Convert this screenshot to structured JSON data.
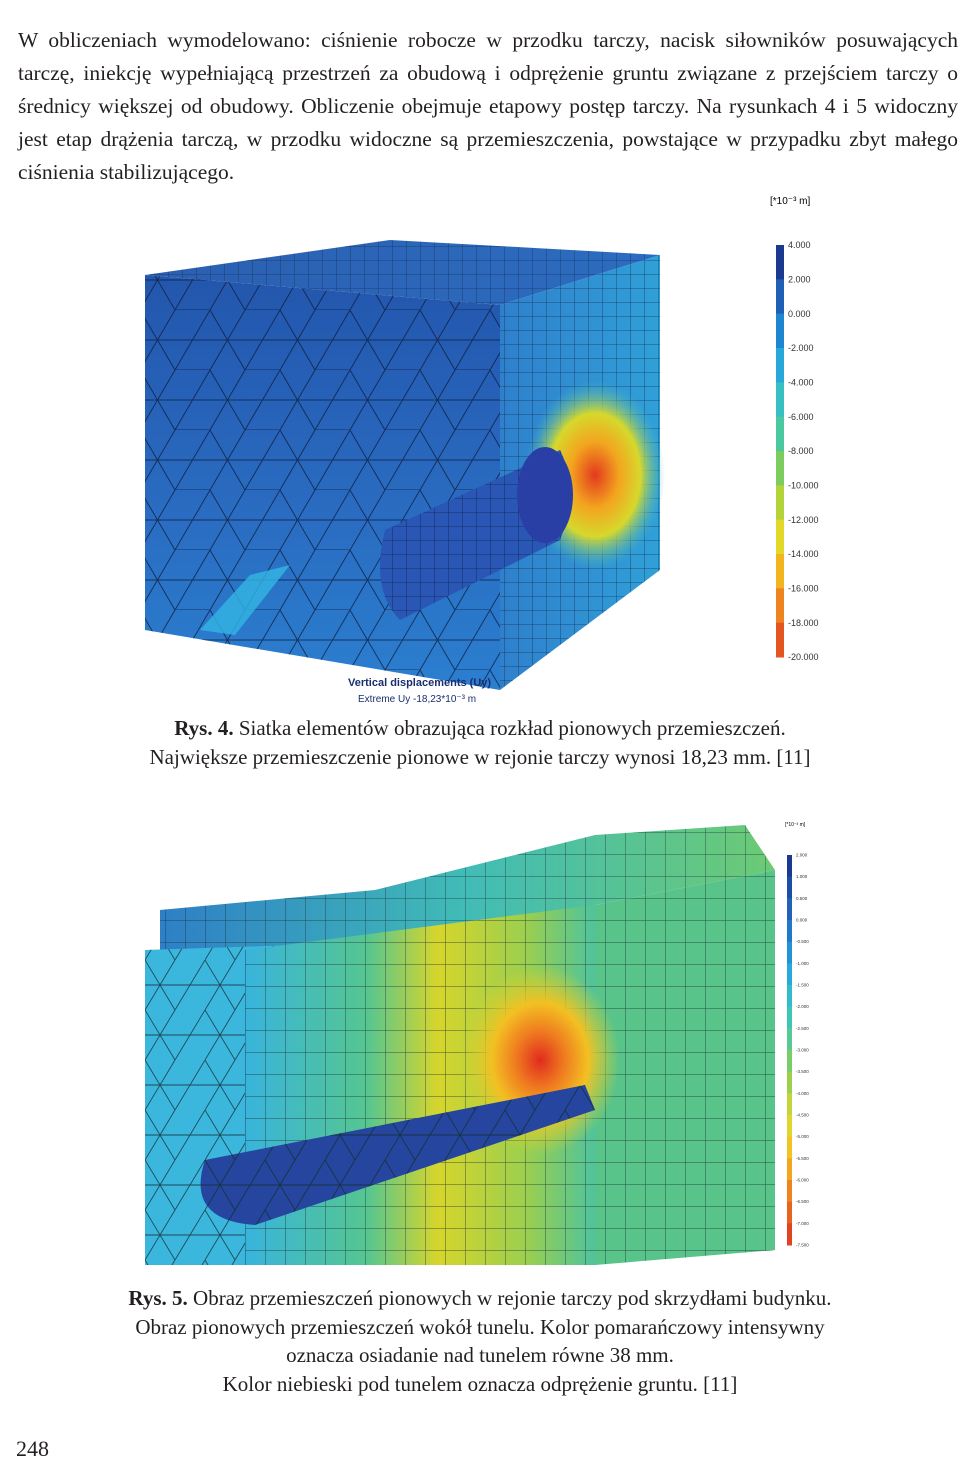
{
  "paragraph": "W obliczeniach wymodelowano: ciśnienie robocze w przodku tarczy, nacisk siłowników posuwających tarczę, iniekcję wypełniającą przestrzeń za obudową i odprężenie gruntu związane z przejściem tarczy o średnicy większej od obudowy. Obliczenie obejmuje etapowy postęp tarczy. Na rysunkach 4 i 5 widoczny jest etap drążenia tarczą, w przodku widoczne są przemieszczenia, powstające w przypadku zbyt małego ciśnienia stabilizującego.",
  "figure4": {
    "unit_label": "[*10⁻³ m]",
    "scale_values": [
      "4.000",
      "2.000",
      "0.000",
      "-2.000",
      "-4.000",
      "-6.000",
      "-8.000",
      "-10.000",
      "-12.000",
      "-14.000",
      "-16.000",
      "-18.000",
      "-20.000"
    ],
    "scale_colors": [
      "#1b3a8f",
      "#1f5fb5",
      "#1e86d0",
      "#26a8d8",
      "#36c0c4",
      "#4cc8a0",
      "#7ccd5e",
      "#b2d33a",
      "#e2d828",
      "#f3b51f",
      "#ee8420",
      "#e45522",
      "#d7261e"
    ],
    "title": "Vertical displacements (Uy)",
    "extreme": "Extreme Uy -18,23*10⁻³ m",
    "caption_label": "Rys. 4.",
    "caption_line1": "Siatka elementów obrazująca rozkład pionowych przemieszczeń.",
    "caption_line2": "Największe przemieszczenie pionowe w rejonie tarczy wynosi 18,23 mm. [11]"
  },
  "figure5": {
    "unit_label": "[*10⁻³ m]",
    "scale_values": [
      "2.000",
      "1.000",
      "0.500",
      "0.000",
      "-0.500",
      "-1.000",
      "-1.500",
      "-2.000",
      "-2.500",
      "-3.000",
      "-3.500",
      "-4.000",
      "-4.500",
      "-5.000",
      "-5.500",
      "-6.000",
      "-6.500",
      "-7.000",
      "-7.500"
    ],
    "scale_colors": [
      "#1b3a8f",
      "#1d4ea6",
      "#1f62b8",
      "#1f78c8",
      "#2291d6",
      "#28a9dc",
      "#30bccc",
      "#3ec6b4",
      "#56ca92",
      "#78cd6a",
      "#9cd04c",
      "#c2d53a",
      "#e0d62c",
      "#f2c422",
      "#f3a520",
      "#ee8320",
      "#e86322",
      "#e04222",
      "#d7261e"
    ],
    "caption_label": "Rys. 5.",
    "caption_line1": "Obraz przemieszczeń pionowych w rejonie tarczy pod skrzydłami budynku.",
    "caption_line2": "Obraz pionowych przemieszczeń wokół tunelu. Kolor pomarańczowy intensywny",
    "caption_line3": "oznacza osiadanie nad tunelem równe 38 mm.",
    "caption_line4": "Kolor niebieski pod tunelem oznacza odprężenie gruntu. [11]"
  },
  "page_number": "248"
}
